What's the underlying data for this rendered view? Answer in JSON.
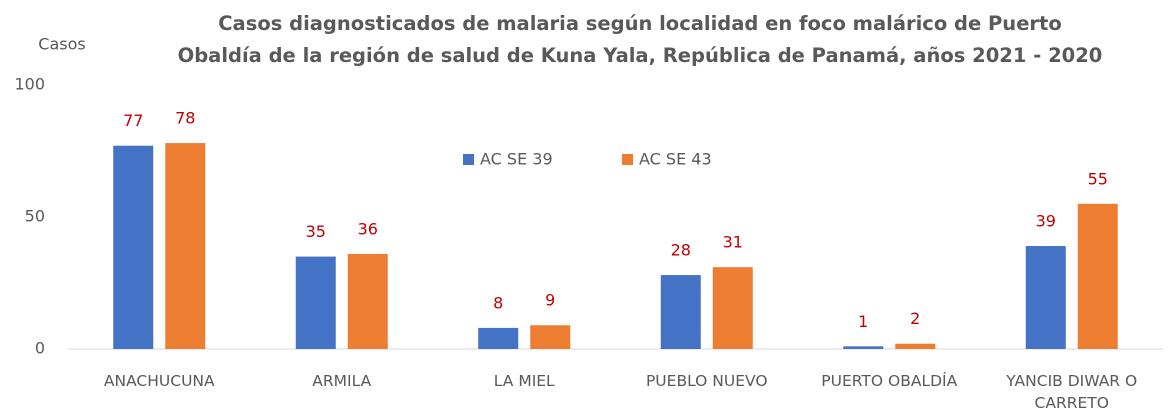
{
  "chart_data": {
    "type": "bar",
    "title": "Casos diagnosticados de malaria según localidad en foco malárico de Puerto Obaldía de la región de salud de Kuna Yala, República de Panamá, años 2021 - 2020",
    "y_label": "Casos",
    "categories": [
      "ANACHUCUNA",
      "ARMILA",
      "LA MIEL",
      "PUEBLO NUEVO",
      "PUERTO OBALDÍA",
      "YANCIB DIWAR O CARRETO"
    ],
    "series": [
      {
        "name": "AC SE 39",
        "color": "#4472c4",
        "values": [
          77,
          35,
          8,
          28,
          1,
          39
        ]
      },
      {
        "name": "AC SE 43",
        "color": "#ed7d31",
        "values": [
          78,
          36,
          9,
          31,
          2,
          55
        ]
      }
    ],
    "ylim": [
      0,
      100
    ],
    "yticks": [
      0,
      50,
      100
    ],
    "grid": false,
    "legend": "top",
    "value_label_color": "#c00000"
  }
}
